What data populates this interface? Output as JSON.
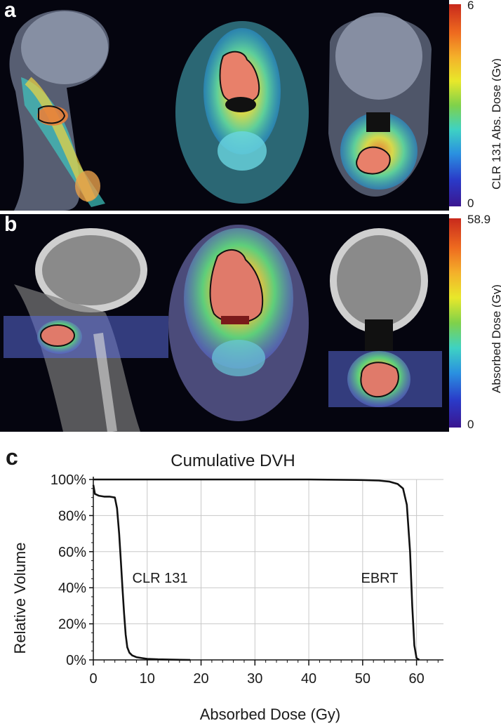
{
  "panel_a": {
    "label": "a",
    "colorbar": {
      "max": "6",
      "min": "0",
      "title": "CLR 131 Abs. Dose (Gy)"
    }
  },
  "panel_b": {
    "label": "b",
    "colorbar": {
      "max": "58.9",
      "min": "0",
      "title": "Absorbed Dose (Gy)"
    }
  },
  "panel_c": {
    "label": "c"
  },
  "colors": {
    "tumor": "#d95a4a",
    "background": "#05050f",
    "curve": "#111111",
    "grid": "#c8c8c8"
  },
  "chart_data": {
    "type": "line",
    "title": "Cumulative DVH",
    "xlabel": "Absorbed Dose (Gy)",
    "ylabel": "Relative Volume",
    "xlim": [
      0,
      65
    ],
    "ylim": [
      0,
      100
    ],
    "x_ticks": [
      "0",
      "10",
      "20",
      "30",
      "40",
      "50",
      "60"
    ],
    "y_ticks": [
      "0%",
      "20%",
      "40%",
      "60%",
      "80%",
      "100%"
    ],
    "grid": true,
    "series": [
      {
        "name": "CLR 131",
        "x": [
          0,
          0.3,
          1,
          2,
          3,
          4,
          4.4,
          4.8,
          5.1,
          5.4,
          5.7,
          6.0,
          6.3,
          6.7,
          7.2,
          8,
          9,
          10,
          12,
          15,
          18
        ],
        "y": [
          97,
          92,
          91,
          90.5,
          90.5,
          90,
          84,
          70,
          55,
          40,
          26,
          14,
          7,
          4,
          2.5,
          1.5,
          1,
          0.6,
          0.3,
          0.1,
          0
        ]
      },
      {
        "name": "EBRT",
        "x": [
          0,
          20,
          40,
          50,
          53,
          55,
          56.5,
          57.5,
          58.2,
          58.8,
          59.2,
          59.6,
          60,
          60.5
        ],
        "y": [
          100,
          100,
          100,
          99.7,
          99.4,
          98.8,
          97.5,
          95,
          86,
          60,
          30,
          8,
          1,
          0
        ]
      }
    ]
  }
}
